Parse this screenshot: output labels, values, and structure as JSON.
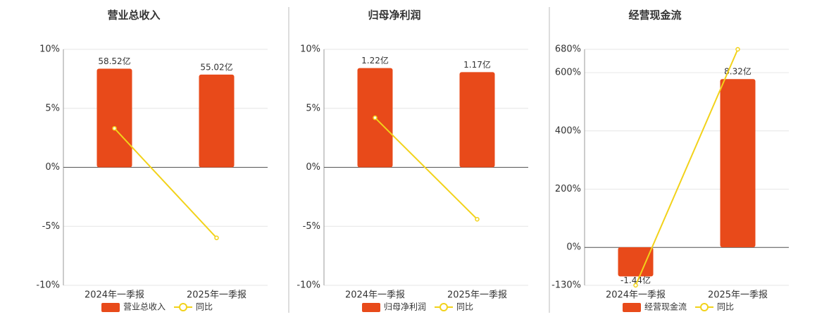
{
  "chart_data": [
    {
      "type": "bar",
      "title": "营业总收入",
      "categories": [
        "2024年一季报",
        "2025年一季报"
      ],
      "series": [
        {
          "name": "营业总收入",
          "type": "bar",
          "axis": "y2",
          "color": "#e84a1a",
          "values": [
            58.52,
            55.02
          ],
          "value_labels": [
            "58.52亿",
            "55.02亿"
          ]
        },
        {
          "name": "同比",
          "type": "line",
          "color": "#f2d21a",
          "values": [
            3.3,
            -5.98
          ]
        }
      ],
      "ylim": [
        -10,
        10
      ],
      "yticks": [
        {
          "value": 10,
          "label": "10%"
        },
        {
          "value": 5,
          "label": "5%"
        },
        {
          "value": 0,
          "label": "0%"
        },
        {
          "value": -5,
          "label": "-5%"
        },
        {
          "value": -10,
          "label": "-10%"
        }
      ],
      "y2lim": [
        -70,
        70
      ],
      "grid": true
    },
    {
      "type": "bar",
      "title": "归母净利润",
      "categories": [
        "2024年一季报",
        "2025年一季报"
      ],
      "series": [
        {
          "name": "归母净利润",
          "type": "bar",
          "axis": "y2",
          "color": "#e84a1a",
          "values": [
            1.22,
            1.17
          ],
          "value_labels": [
            "1.22亿",
            "1.17亿"
          ]
        },
        {
          "name": "同比",
          "type": "line",
          "color": "#f2d21a",
          "values": [
            4.2,
            -4.4
          ]
        }
      ],
      "ylim": [
        -10,
        10
      ],
      "yticks": [
        {
          "value": 10,
          "label": "10%"
        },
        {
          "value": 5,
          "label": "5%"
        },
        {
          "value": 0,
          "label": "0%"
        },
        {
          "value": -5,
          "label": "-5%"
        },
        {
          "value": -10,
          "label": "-10%"
        }
      ],
      "y2lim": [
        -1.45,
        1.45
      ],
      "grid": true
    },
    {
      "type": "bar",
      "title": "经营现金流",
      "categories": [
        "2024年一季报",
        "2025年一季报"
      ],
      "series": [
        {
          "name": "经营现金流",
          "type": "bar",
          "axis": "y2",
          "color": "#e84a1a",
          "values": [
            -1.44,
            8.32
          ],
          "value_labels": [
            "-1.44亿",
            "8.32亿"
          ]
        },
        {
          "name": "同比",
          "type": "line",
          "color": "#f2d21a",
          "values": [
            -130,
            680
          ]
        }
      ],
      "ylim": [
        -130,
        680
      ],
      "yticks": [
        {
          "value": 680,
          "label": "680%"
        },
        {
          "value": 600,
          "label": "600%"
        },
        {
          "value": 400,
          "label": "400%"
        },
        {
          "value": 200,
          "label": "200%"
        },
        {
          "value": 0,
          "label": "0%"
        },
        {
          "value": -130,
          "label": "-130%"
        }
      ],
      "y2lim": [
        -1.88,
        9.79
      ],
      "grid": true
    }
  ]
}
